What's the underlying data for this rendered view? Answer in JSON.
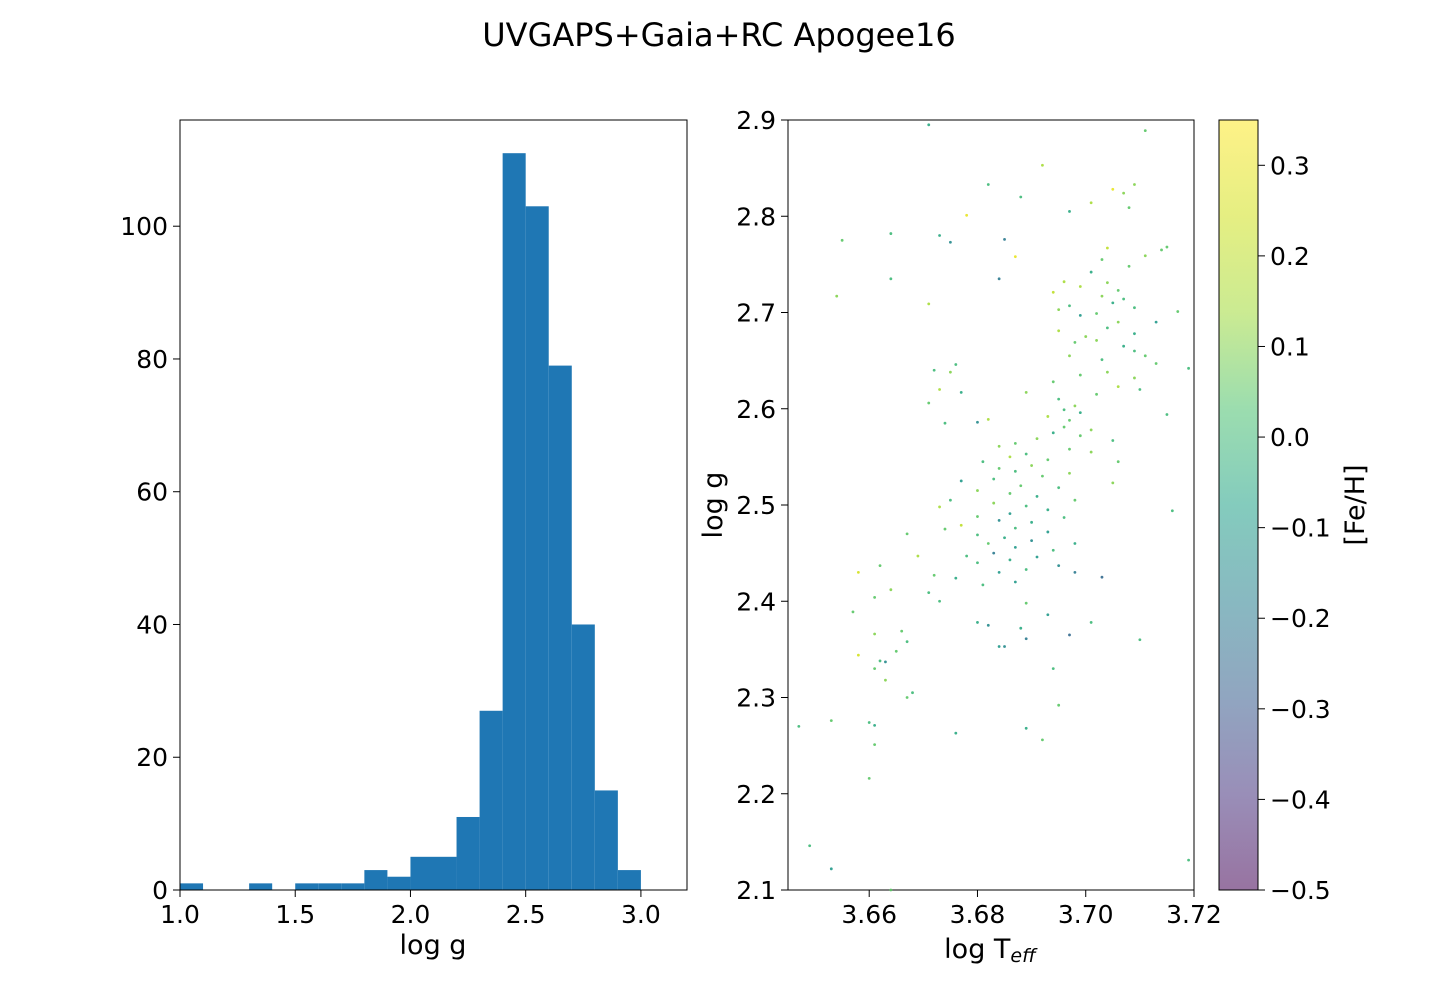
{
  "figure": {
    "title": "UVGAPS+Gaia+RC Apogee16"
  },
  "chart_data": [
    {
      "type": "bar",
      "subtype": "histogram",
      "xlabel": "log g",
      "ylabel": "",
      "xlim": [
        1.0,
        3.2
      ],
      "ylim": [
        0,
        116
      ],
      "bar_color": "#1f77b4",
      "bin_width": 0.1,
      "bins": [
        {
          "x0": 1.0,
          "count": 1
        },
        {
          "x0": 1.1,
          "count": 0
        },
        {
          "x0": 1.2,
          "count": 0
        },
        {
          "x0": 1.3,
          "count": 1
        },
        {
          "x0": 1.4,
          "count": 0
        },
        {
          "x0": 1.5,
          "count": 1
        },
        {
          "x0": 1.6,
          "count": 1
        },
        {
          "x0": 1.7,
          "count": 1
        },
        {
          "x0": 1.8,
          "count": 3
        },
        {
          "x0": 1.9,
          "count": 2
        },
        {
          "x0": 2.0,
          "count": 5
        },
        {
          "x0": 2.1,
          "count": 5
        },
        {
          "x0": 2.2,
          "count": 11
        },
        {
          "x0": 2.3,
          "count": 27
        },
        {
          "x0": 2.4,
          "count": 111
        },
        {
          "x0": 2.5,
          "count": 103
        },
        {
          "x0": 2.6,
          "count": 79
        },
        {
          "x0": 2.7,
          "count": 40
        },
        {
          "x0": 2.8,
          "count": 15
        },
        {
          "x0": 2.9,
          "count": 3
        }
      ],
      "xticks": [
        "1.0",
        "1.5",
        "2.0",
        "2.5",
        "3.0"
      ],
      "yticks": [
        "0",
        "20",
        "40",
        "60",
        "80",
        "100"
      ],
      "grid": false
    },
    {
      "type": "scatter",
      "xlabel_main": "log T",
      "xlabel_sub": "eff",
      "ylabel": "log g",
      "xlim": [
        3.645,
        3.72
      ],
      "ylim": [
        2.1,
        2.9
      ],
      "xticks": [
        "3.66",
        "3.68",
        "3.70",
        "3.72"
      ],
      "yticks": [
        "2.1",
        "2.2",
        "2.3",
        "2.4",
        "2.5",
        "2.6",
        "2.7",
        "2.8",
        "2.9"
      ],
      "colorbar": {
        "label": "[Fe/H]",
        "range": [
          -0.5,
          0.35
        ],
        "ticks": [
          "0.3",
          "0.2",
          "0.1",
          "0.0",
          "−0.1",
          "−0.2",
          "−0.3",
          "−0.4",
          "−0.5"
        ],
        "colormap": "viridis"
      },
      "points": [
        {
          "x": 3.671,
          "y": 2.895,
          "c": -0.05
        },
        {
          "x": 3.711,
          "y": 2.889,
          "c": 0.05
        },
        {
          "x": 3.692,
          "y": 2.853,
          "c": 0.15
        },
        {
          "x": 3.682,
          "y": 2.833,
          "c": 0.0
        },
        {
          "x": 3.709,
          "y": 2.833,
          "c": 0.1
        },
        {
          "x": 3.705,
          "y": 2.828,
          "c": 0.3
        },
        {
          "x": 3.707,
          "y": 2.824,
          "c": 0.1
        },
        {
          "x": 3.688,
          "y": 2.82,
          "c": 0.0
        },
        {
          "x": 3.701,
          "y": 2.814,
          "c": 0.15
        },
        {
          "x": 3.708,
          "y": 2.809,
          "c": 0.05
        },
        {
          "x": 3.697,
          "y": 2.805,
          "c": -0.05
        },
        {
          "x": 3.678,
          "y": 2.801,
          "c": 0.3
        },
        {
          "x": 3.655,
          "y": 2.775,
          "c": 0.05
        },
        {
          "x": 3.664,
          "y": 2.782,
          "c": 0.0
        },
        {
          "x": 3.673,
          "y": 2.78,
          "c": -0.05
        },
        {
          "x": 3.675,
          "y": 2.773,
          "c": -0.15
        },
        {
          "x": 3.685,
          "y": 2.776,
          "c": -0.2
        },
        {
          "x": 3.714,
          "y": 2.765,
          "c": 0.05
        },
        {
          "x": 3.715,
          "y": 2.768,
          "c": 0.05
        },
        {
          "x": 3.704,
          "y": 2.767,
          "c": 0.2
        },
        {
          "x": 3.687,
          "y": 2.758,
          "c": 0.3
        },
        {
          "x": 3.703,
          "y": 2.755,
          "c": 0.05
        },
        {
          "x": 3.711,
          "y": 2.759,
          "c": 0.1
        },
        {
          "x": 3.708,
          "y": 2.748,
          "c": 0.05
        },
        {
          "x": 3.701,
          "y": 2.742,
          "c": -0.05
        },
        {
          "x": 3.684,
          "y": 2.735,
          "c": -0.2
        },
        {
          "x": 3.664,
          "y": 2.735,
          "c": 0.0
        },
        {
          "x": 3.696,
          "y": 2.732,
          "c": 0.15
        },
        {
          "x": 3.704,
          "y": 2.731,
          "c": 0.1
        },
        {
          "x": 3.699,
          "y": 2.727,
          "c": 0.15
        },
        {
          "x": 3.706,
          "y": 2.723,
          "c": 0.05
        },
        {
          "x": 3.694,
          "y": 2.721,
          "c": 0.2
        },
        {
          "x": 3.703,
          "y": 2.717,
          "c": 0.1
        },
        {
          "x": 3.707,
          "y": 2.714,
          "c": 0.0
        },
        {
          "x": 3.654,
          "y": 2.717,
          "c": 0.1
        },
        {
          "x": 3.671,
          "y": 2.709,
          "c": 0.15
        },
        {
          "x": 3.697,
          "y": 2.707,
          "c": 0.0
        },
        {
          "x": 3.705,
          "y": 2.71,
          "c": -0.05
        },
        {
          "x": 3.709,
          "y": 2.705,
          "c": 0.0
        },
        {
          "x": 3.695,
          "y": 2.703,
          "c": 0.1
        },
        {
          "x": 3.702,
          "y": 2.699,
          "c": 0.05
        },
        {
          "x": 3.699,
          "y": 2.697,
          "c": -0.1
        },
        {
          "x": 3.717,
          "y": 2.701,
          "c": 0.05
        },
        {
          "x": 3.713,
          "y": 2.69,
          "c": -0.1
        },
        {
          "x": 3.706,
          "y": 2.69,
          "c": 0.1
        },
        {
          "x": 3.704,
          "y": 2.684,
          "c": 0.0
        },
        {
          "x": 3.695,
          "y": 2.681,
          "c": 0.15
        },
        {
          "x": 3.709,
          "y": 2.678,
          "c": -0.05
        },
        {
          "x": 3.7,
          "y": 2.675,
          "c": 0.1
        },
        {
          "x": 3.698,
          "y": 2.669,
          "c": 0.05
        },
        {
          "x": 3.702,
          "y": 2.671,
          "c": 0.1
        },
        {
          "x": 3.707,
          "y": 2.665,
          "c": -0.05
        },
        {
          "x": 3.709,
          "y": 2.66,
          "c": 0.0
        },
        {
          "x": 3.711,
          "y": 2.655,
          "c": 0.05
        },
        {
          "x": 3.697,
          "y": 2.655,
          "c": 0.1
        },
        {
          "x": 3.703,
          "y": 2.651,
          "c": 0.0
        },
        {
          "x": 3.713,
          "y": 2.647,
          "c": 0.05
        },
        {
          "x": 3.719,
          "y": 2.642,
          "c": 0.0
        },
        {
          "x": 3.676,
          "y": 2.646,
          "c": 0.0
        },
        {
          "x": 3.675,
          "y": 2.638,
          "c": 0.1
        },
        {
          "x": 3.672,
          "y": 2.64,
          "c": 0.0
        },
        {
          "x": 3.704,
          "y": 2.638,
          "c": 0.1
        },
        {
          "x": 3.699,
          "y": 2.635,
          "c": 0.05
        },
        {
          "x": 3.709,
          "y": 2.632,
          "c": 0.1
        },
        {
          "x": 3.694,
          "y": 2.628,
          "c": 0.05
        },
        {
          "x": 3.706,
          "y": 2.623,
          "c": 0.15
        },
        {
          "x": 3.71,
          "y": 2.62,
          "c": 0.0
        },
        {
          "x": 3.677,
          "y": 2.617,
          "c": -0.05
        },
        {
          "x": 3.673,
          "y": 2.62,
          "c": 0.15
        },
        {
          "x": 3.689,
          "y": 2.617,
          "c": 0.1
        },
        {
          "x": 3.702,
          "y": 2.615,
          "c": 0.05
        },
        {
          "x": 3.695,
          "y": 2.61,
          "c": 0.0
        },
        {
          "x": 3.671,
          "y": 2.606,
          "c": 0.05
        },
        {
          "x": 3.698,
          "y": 2.603,
          "c": 0.1
        },
        {
          "x": 3.696,
          "y": 2.599,
          "c": 0.0
        },
        {
          "x": 3.699,
          "y": 2.596,
          "c": -0.05
        },
        {
          "x": 3.715,
          "y": 2.594,
          "c": 0.0
        },
        {
          "x": 3.693,
          "y": 2.592,
          "c": 0.15
        },
        {
          "x": 3.697,
          "y": 2.588,
          "c": 0.05
        },
        {
          "x": 3.68,
          "y": 2.586,
          "c": -0.15
        },
        {
          "x": 3.682,
          "y": 2.589,
          "c": 0.15
        },
        {
          "x": 3.674,
          "y": 2.585,
          "c": 0.0
        },
        {
          "x": 3.696,
          "y": 2.581,
          "c": 0.05
        },
        {
          "x": 3.701,
          "y": 2.578,
          "c": 0.1
        },
        {
          "x": 3.694,
          "y": 2.575,
          "c": -0.05
        },
        {
          "x": 3.699,
          "y": 2.572,
          "c": 0.05
        },
        {
          "x": 3.691,
          "y": 2.569,
          "c": 0.1
        },
        {
          "x": 3.705,
          "y": 2.567,
          "c": 0.0
        },
        {
          "x": 3.687,
          "y": 2.564,
          "c": 0.05
        },
        {
          "x": 3.684,
          "y": 2.561,
          "c": 0.1
        },
        {
          "x": 3.697,
          "y": 2.558,
          "c": 0.05
        },
        {
          "x": 3.701,
          "y": 2.555,
          "c": 0.1
        },
        {
          "x": 3.689,
          "y": 2.553,
          "c": 0.0
        },
        {
          "x": 3.686,
          "y": 2.55,
          "c": 0.15
        },
        {
          "x": 3.693,
          "y": 2.547,
          "c": 0.05
        },
        {
          "x": 3.681,
          "y": 2.545,
          "c": 0.0
        },
        {
          "x": 3.706,
          "y": 2.545,
          "c": 0.05
        },
        {
          "x": 3.69,
          "y": 2.541,
          "c": 0.1
        },
        {
          "x": 3.684,
          "y": 2.538,
          "c": 0.05
        },
        {
          "x": 3.687,
          "y": 2.535,
          "c": 0.0
        },
        {
          "x": 3.697,
          "y": 2.533,
          "c": 0.1
        },
        {
          "x": 3.692,
          "y": 2.53,
          "c": 0.05
        },
        {
          "x": 3.683,
          "y": 2.527,
          "c": 0.0
        },
        {
          "x": 3.677,
          "y": 2.525,
          "c": -0.1
        },
        {
          "x": 3.705,
          "y": 2.523,
          "c": 0.1
        },
        {
          "x": 3.688,
          "y": 2.52,
          "c": 0.05
        },
        {
          "x": 3.695,
          "y": 2.518,
          "c": 0.0
        },
        {
          "x": 3.68,
          "y": 2.515,
          "c": 0.1
        },
        {
          "x": 3.686,
          "y": 2.512,
          "c": 0.05
        },
        {
          "x": 3.691,
          "y": 2.509,
          "c": -0.05
        },
        {
          "x": 3.675,
          "y": 2.505,
          "c": 0.0
        },
        {
          "x": 3.698,
          "y": 2.505,
          "c": 0.05
        },
        {
          "x": 3.683,
          "y": 2.502,
          "c": 0.1
        },
        {
          "x": 3.689,
          "y": 2.499,
          "c": 0.0
        },
        {
          "x": 3.673,
          "y": 2.498,
          "c": 0.15
        },
        {
          "x": 3.693,
          "y": 2.495,
          "c": -0.05
        },
        {
          "x": 3.716,
          "y": 2.494,
          "c": 0.0
        },
        {
          "x": 3.686,
          "y": 2.491,
          "c": -0.1
        },
        {
          "x": 3.68,
          "y": 2.488,
          "c": 0.05
        },
        {
          "x": 3.696,
          "y": 2.487,
          "c": 0.0
        },
        {
          "x": 3.684,
          "y": 2.484,
          "c": -0.15
        },
        {
          "x": 3.69,
          "y": 2.482,
          "c": -0.05
        },
        {
          "x": 3.677,
          "y": 2.479,
          "c": 0.2
        },
        {
          "x": 3.687,
          "y": 2.476,
          "c": 0.0
        },
        {
          "x": 3.674,
          "y": 2.475,
          "c": 0.05
        },
        {
          "x": 3.693,
          "y": 2.472,
          "c": -0.1
        },
        {
          "x": 3.68,
          "y": 2.469,
          "c": 0.0
        },
        {
          "x": 3.667,
          "y": 2.47,
          "c": 0.05
        },
        {
          "x": 3.685,
          "y": 2.466,
          "c": -0.05
        },
        {
          "x": 3.69,
          "y": 2.463,
          "c": -0.15
        },
        {
          "x": 3.682,
          "y": 2.46,
          "c": 0.05
        },
        {
          "x": 3.698,
          "y": 2.46,
          "c": -0.05
        },
        {
          "x": 3.687,
          "y": 2.456,
          "c": -0.1
        },
        {
          "x": 3.694,
          "y": 2.453,
          "c": 0.0
        },
        {
          "x": 3.683,
          "y": 2.45,
          "c": -0.2
        },
        {
          "x": 3.678,
          "y": 2.447,
          "c": 0.0
        },
        {
          "x": 3.691,
          "y": 2.446,
          "c": -0.1
        },
        {
          "x": 3.669,
          "y": 2.447,
          "c": 0.15
        },
        {
          "x": 3.686,
          "y": 2.443,
          "c": -0.05
        },
        {
          "x": 3.68,
          "y": 2.44,
          "c": 0.0
        },
        {
          "x": 3.695,
          "y": 2.437,
          "c": -0.15
        },
        {
          "x": 3.662,
          "y": 2.437,
          "c": 0.05
        },
        {
          "x": 3.689,
          "y": 2.433,
          "c": 0.0
        },
        {
          "x": 3.684,
          "y": 2.43,
          "c": -0.1
        },
        {
          "x": 3.698,
          "y": 2.43,
          "c": -0.2
        },
        {
          "x": 3.658,
          "y": 2.43,
          "c": 0.25
        },
        {
          "x": 3.672,
          "y": 2.427,
          "c": 0.05
        },
        {
          "x": 3.676,
          "y": 2.424,
          "c": -0.05
        },
        {
          "x": 3.687,
          "y": 2.42,
          "c": -0.1
        },
        {
          "x": 3.703,
          "y": 2.425,
          "c": -0.25
        },
        {
          "x": 3.681,
          "y": 2.417,
          "c": 0.0
        },
        {
          "x": 3.664,
          "y": 2.412,
          "c": 0.1
        },
        {
          "x": 3.671,
          "y": 2.409,
          "c": 0.0
        },
        {
          "x": 3.661,
          "y": 2.404,
          "c": 0.05
        },
        {
          "x": 3.673,
          "y": 2.4,
          "c": 0.0
        },
        {
          "x": 3.689,
          "y": 2.398,
          "c": 0.05
        },
        {
          "x": 3.657,
          "y": 2.389,
          "c": 0.05
        },
        {
          "x": 3.693,
          "y": 2.386,
          "c": -0.1
        },
        {
          "x": 3.68,
          "y": 2.378,
          "c": -0.05
        },
        {
          "x": 3.701,
          "y": 2.378,
          "c": 0.0
        },
        {
          "x": 3.682,
          "y": 2.375,
          "c": -0.15
        },
        {
          "x": 3.688,
          "y": 2.372,
          "c": -0.05
        },
        {
          "x": 3.666,
          "y": 2.369,
          "c": 0.05
        },
        {
          "x": 3.661,
          "y": 2.366,
          "c": 0.1
        },
        {
          "x": 3.697,
          "y": 2.365,
          "c": -0.25
        },
        {
          "x": 3.689,
          "y": 2.361,
          "c": -0.2
        },
        {
          "x": 3.71,
          "y": 2.36,
          "c": 0.0
        },
        {
          "x": 3.667,
          "y": 2.358,
          "c": 0.0
        },
        {
          "x": 3.665,
          "y": 2.348,
          "c": 0.05
        },
        {
          "x": 3.684,
          "y": 2.353,
          "c": -0.1
        },
        {
          "x": 3.685,
          "y": 2.353,
          "c": -0.15
        },
        {
          "x": 3.658,
          "y": 2.344,
          "c": 0.25
        },
        {
          "x": 3.662,
          "y": 2.338,
          "c": 0.0
        },
        {
          "x": 3.663,
          "y": 2.337,
          "c": -0.15
        },
        {
          "x": 3.661,
          "y": 2.33,
          "c": 0.05
        },
        {
          "x": 3.694,
          "y": 2.33,
          "c": 0.0
        },
        {
          "x": 3.663,
          "y": 2.318,
          "c": 0.1
        },
        {
          "x": 3.668,
          "y": 2.305,
          "c": 0.0
        },
        {
          "x": 3.667,
          "y": 2.3,
          "c": 0.05
        },
        {
          "x": 3.695,
          "y": 2.292,
          "c": 0.05
        },
        {
          "x": 3.647,
          "y": 2.27,
          "c": 0.0
        },
        {
          "x": 3.653,
          "y": 2.276,
          "c": 0.05
        },
        {
          "x": 3.66,
          "y": 2.274,
          "c": 0.0
        },
        {
          "x": 3.661,
          "y": 2.271,
          "c": -0.05
        },
        {
          "x": 3.689,
          "y": 2.268,
          "c": -0.05
        },
        {
          "x": 3.676,
          "y": 2.263,
          "c": -0.05
        },
        {
          "x": 3.692,
          "y": 2.256,
          "c": 0.05
        },
        {
          "x": 3.661,
          "y": 2.251,
          "c": 0.05
        },
        {
          "x": 3.66,
          "y": 2.216,
          "c": 0.05
        },
        {
          "x": 3.649,
          "y": 2.146,
          "c": 0.0
        },
        {
          "x": 3.653,
          "y": 2.122,
          "c": -0.1
        },
        {
          "x": 3.719,
          "y": 2.131,
          "c": 0.0
        },
        {
          "x": 3.664,
          "y": 2.1,
          "c": 0.05
        }
      ]
    }
  ]
}
